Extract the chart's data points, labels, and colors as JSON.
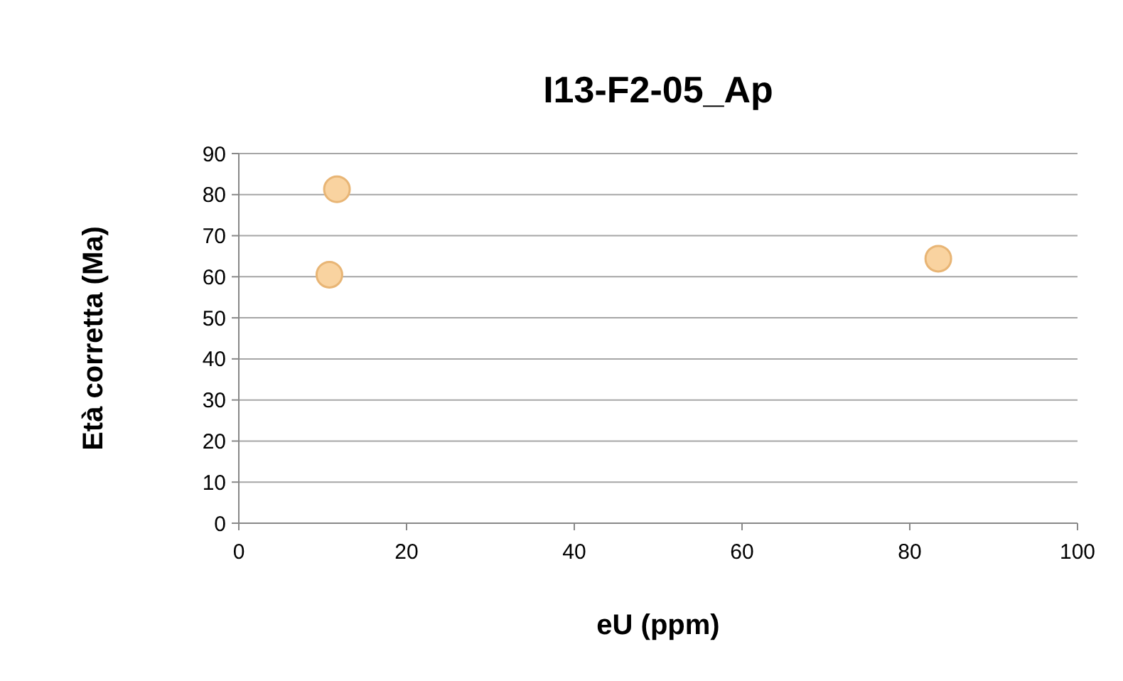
{
  "chart_data": {
    "type": "scatter",
    "title": "I13-F2-05_Ap",
    "xlabel": "eU (ppm)",
    "ylabel": "Età corretta (Ma)",
    "series": [
      {
        "color": "#f9d3a0",
        "x": [
          11.7,
          10.8,
          83.4
        ],
        "values": [
          81.3,
          60.5,
          64.4
        ]
      }
    ],
    "xlim": [
      0,
      100
    ],
    "xticks": [
      0,
      20,
      40,
      60,
      80,
      100
    ],
    "ylim": [
      0,
      90
    ],
    "yticks": [
      0,
      10,
      20,
      30,
      40,
      50,
      60,
      70,
      80,
      90
    ],
    "grid": "y",
    "marker": "circle"
  }
}
